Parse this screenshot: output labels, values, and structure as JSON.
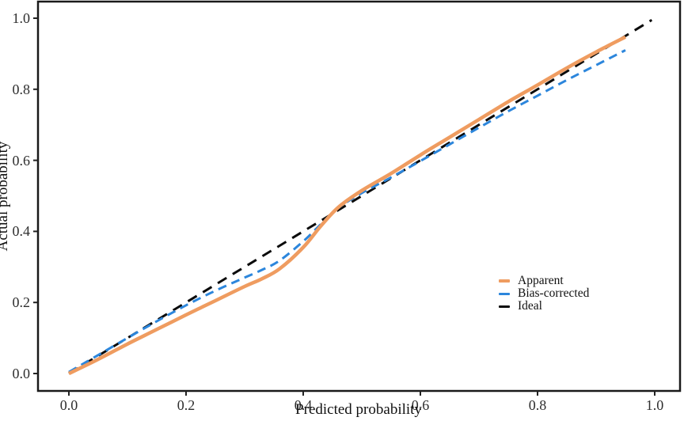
{
  "chart": {
    "type": "line",
    "title": "",
    "xlabel": "Predicted probability",
    "ylabel": "Actual probability",
    "xlim": [
      0,
      1
    ],
    "ylim": [
      0,
      1
    ],
    "x_ticks": [
      "0.0",
      "0.2",
      "0.4",
      "0.6",
      "0.8",
      "1.0"
    ],
    "y_ticks": [
      "0.0",
      "0.2",
      "0.4",
      "0.6",
      "0.8",
      "1.0"
    ],
    "grid": "off",
    "panel_border_color": "#1a1a1a",
    "legend_position": "right-middle",
    "series": [
      {
        "name": "Apparent",
        "color": "#EF9C60",
        "style": "solid",
        "width": 4.5,
        "points": [
          [
            0.0,
            0.0
          ],
          [
            0.05,
            0.04
          ],
          [
            0.1,
            0.083
          ],
          [
            0.15,
            0.124
          ],
          [
            0.2,
            0.165
          ],
          [
            0.25,
            0.205
          ],
          [
            0.3,
            0.245
          ],
          [
            0.33,
            0.267
          ],
          [
            0.36,
            0.295
          ],
          [
            0.4,
            0.355
          ],
          [
            0.43,
            0.415
          ],
          [
            0.46,
            0.468
          ],
          [
            0.5,
            0.515
          ],
          [
            0.55,
            0.563
          ],
          [
            0.6,
            0.615
          ],
          [
            0.65,
            0.665
          ],
          [
            0.7,
            0.715
          ],
          [
            0.75,
            0.765
          ],
          [
            0.8,
            0.812
          ],
          [
            0.85,
            0.86
          ],
          [
            0.9,
            0.905
          ],
          [
            0.95,
            0.947
          ]
        ]
      },
      {
        "name": "Bias-corrected",
        "color": "#2C86DC",
        "style": "dashed",
        "dash": "11 7",
        "width": 3,
        "points": [
          [
            0.0,
            0.004
          ],
          [
            0.05,
            0.052
          ],
          [
            0.1,
            0.1
          ],
          [
            0.15,
            0.147
          ],
          [
            0.2,
            0.192
          ],
          [
            0.25,
            0.233
          ],
          [
            0.3,
            0.27
          ],
          [
            0.33,
            0.292
          ],
          [
            0.36,
            0.318
          ],
          [
            0.4,
            0.372
          ],
          [
            0.43,
            0.42
          ],
          [
            0.46,
            0.466
          ],
          [
            0.5,
            0.508
          ],
          [
            0.55,
            0.552
          ],
          [
            0.6,
            0.598
          ],
          [
            0.65,
            0.645
          ],
          [
            0.7,
            0.692
          ],
          [
            0.75,
            0.738
          ],
          [
            0.8,
            0.782
          ],
          [
            0.85,
            0.826
          ],
          [
            0.9,
            0.868
          ],
          [
            0.95,
            0.91
          ]
        ]
      },
      {
        "name": "Ideal",
        "color": "#0b0b0b",
        "style": "dashed",
        "dash": "13 9",
        "width": 3,
        "points": [
          [
            0.0,
            0.0
          ],
          [
            0.995,
            0.995
          ]
        ]
      }
    ]
  }
}
